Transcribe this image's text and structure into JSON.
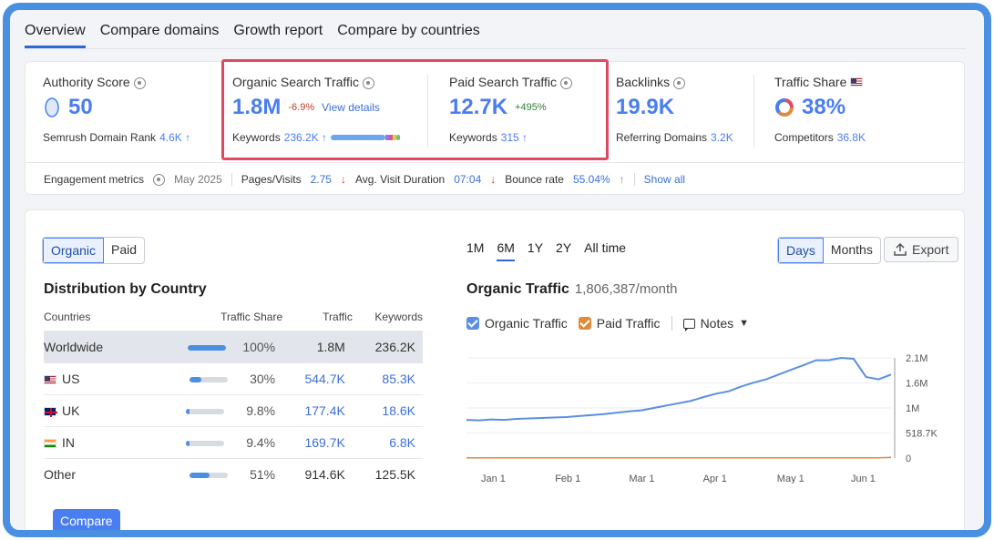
{
  "tabs": [
    "Overview",
    "Compare domains",
    "Growth report",
    "Compare by countries"
  ],
  "summary": {
    "authority": {
      "title": "Authority Score",
      "value": "50",
      "sub_label": "Semrush Domain Rank",
      "sub_value": "4.6K ↑"
    },
    "organic": {
      "title": "Organic Search Traffic",
      "value": "1.8M",
      "delta": "-6.9%",
      "link": "View details",
      "sub_label": "Keywords",
      "sub_value": "236.2K ↑"
    },
    "paid": {
      "title": "Paid Search Traffic",
      "value": "12.7K",
      "delta": "+495%",
      "sub_label": "Keywords",
      "sub_value": "315 ↑"
    },
    "backlinks": {
      "title": "Backlinks",
      "value": "19.9K",
      "sub_label": "Referring Domains",
      "sub_value": "3.2K"
    },
    "share": {
      "title": "Traffic Share",
      "value": "38%",
      "sub_label": "Competitors",
      "sub_value": "36.8K"
    }
  },
  "engagement": {
    "label": "Engagement metrics",
    "date": "May 2025",
    "pages_label": "Pages/Visits",
    "pages_value": "2.75",
    "duration_label": "Avg. Visit Duration",
    "duration_value": "07:04",
    "bounce_label": "Bounce rate",
    "bounce_value": "55.04%",
    "show_all": "Show all"
  },
  "left": {
    "toggle": [
      "Organic",
      "Paid"
    ],
    "title": "Distribution by Country",
    "columns": [
      "Countries",
      "Traffic Share",
      "Traffic",
      "Keywords"
    ],
    "rows": [
      {
        "country": "Worldwide",
        "share": "100%",
        "share_frac": 1.0,
        "traffic": "1.8M",
        "keywords": "236.2K"
      },
      {
        "country": "US",
        "share": "30%",
        "share_frac": 0.3,
        "traffic": "544.7K",
        "keywords": "85.3K"
      },
      {
        "country": "UK",
        "share": "9.8%",
        "share_frac": 0.098,
        "traffic": "177.4K",
        "keywords": "18.6K"
      },
      {
        "country": "IN",
        "share": "9.4%",
        "share_frac": 0.094,
        "traffic": "169.7K",
        "keywords": "6.8K"
      },
      {
        "country": "Other",
        "share": "51%",
        "share_frac": 0.51,
        "traffic": "914.6K",
        "keywords": "125.5K"
      }
    ],
    "compare_button": "Compare"
  },
  "right": {
    "periods": [
      "1M",
      "6M",
      "1Y",
      "2Y",
      "All time"
    ],
    "view_toggle": [
      "Days",
      "Months"
    ],
    "export": "Export",
    "chart_title": "Organic Traffic",
    "chart_subtitle": "1,806,387/month",
    "legend": {
      "organic": "Organic Traffic",
      "paid": "Paid Traffic",
      "notes": "Notes"
    },
    "colors": {
      "organic": "#5b8fe0",
      "paid": "#e08a3c",
      "accent": "#4a7ef0"
    }
  },
  "chart_data": {
    "type": "line",
    "x_ticks": [
      "Jan 1",
      "Feb 1",
      "Mar 1",
      "Apr 1",
      "May 1",
      "Jun 1"
    ],
    "y_ticks": [
      "2.1M",
      "1.6M",
      "1M",
      "518.7K",
      "0"
    ],
    "ylim": [
      0,
      2100000
    ],
    "series": [
      {
        "name": "Organic Traffic",
        "values": [
          800000,
          790000,
          810000,
          800000,
          820000,
          830000,
          840000,
          850000,
          860000,
          880000,
          900000,
          920000,
          950000,
          980000,
          1000000,
          1050000,
          1100000,
          1150000,
          1200000,
          1280000,
          1350000,
          1400000,
          1500000,
          1580000,
          1650000,
          1750000,
          1850000,
          1950000,
          2050000,
          2050000,
          2100000,
          2080000,
          1700000,
          1650000,
          1750000
        ]
      },
      {
        "name": "Paid Traffic",
        "values": [
          5000,
          5000,
          5000,
          5000,
          5000,
          5000,
          5000,
          5000,
          5000,
          5000,
          5000,
          5000,
          5000,
          5000,
          5000,
          5000,
          5000,
          5000,
          5000,
          5000,
          5000,
          5000,
          5000,
          5000,
          5000,
          5000,
          5000,
          5000,
          5000,
          5000,
          5000,
          5000,
          5000,
          5000,
          12700
        ]
      }
    ]
  }
}
